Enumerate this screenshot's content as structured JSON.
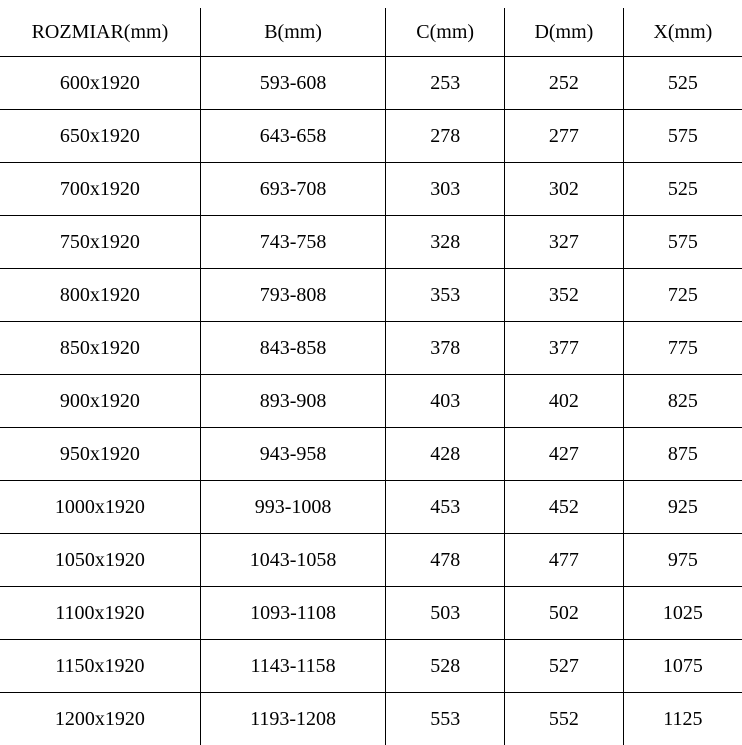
{
  "table": {
    "type": "table",
    "background_color": "#ffffff",
    "border_color": "#000000",
    "font_family": "SimSun / Songti serif",
    "header_fontsize": 20,
    "cell_fontsize": 20,
    "text_color": "#000000",
    "columns": [
      {
        "label": "ROZMIAR(mm)",
        "width_pct": 27,
        "align": "center"
      },
      {
        "label": "B(mm)",
        "width_pct": 25,
        "align": "center"
      },
      {
        "label": "C(mm)",
        "width_pct": 16,
        "align": "center"
      },
      {
        "label": "D(mm)",
        "width_pct": 16,
        "align": "center"
      },
      {
        "label": "X(mm)",
        "width_pct": 16,
        "align": "center"
      }
    ],
    "rows": [
      [
        "600x1920",
        "593-608",
        "253",
        "252",
        "525"
      ],
      [
        "650x1920",
        "643-658",
        "278",
        "277",
        "575"
      ],
      [
        "700x1920",
        "693-708",
        "303",
        "302",
        "525"
      ],
      [
        "750x1920",
        "743-758",
        "328",
        "327",
        "575"
      ],
      [
        "800x1920",
        "793-808",
        "353",
        "352",
        "725"
      ],
      [
        "850x1920",
        "843-858",
        "378",
        "377",
        "775"
      ],
      [
        "900x1920",
        "893-908",
        "403",
        "402",
        "825"
      ],
      [
        "950x1920",
        "943-958",
        "428",
        "427",
        "875"
      ],
      [
        "1000x1920",
        "993-1008",
        "453",
        "452",
        "925"
      ],
      [
        "1050x1920",
        "1043-1058",
        "478",
        "477",
        "975"
      ],
      [
        "1100x1920",
        "1093-1108",
        "503",
        "502",
        "1025"
      ],
      [
        "1150x1920",
        "1143-1158",
        "528",
        "527",
        "1075"
      ],
      [
        "1200x1920",
        "1193-1208",
        "553",
        "552",
        "1125"
      ]
    ]
  }
}
